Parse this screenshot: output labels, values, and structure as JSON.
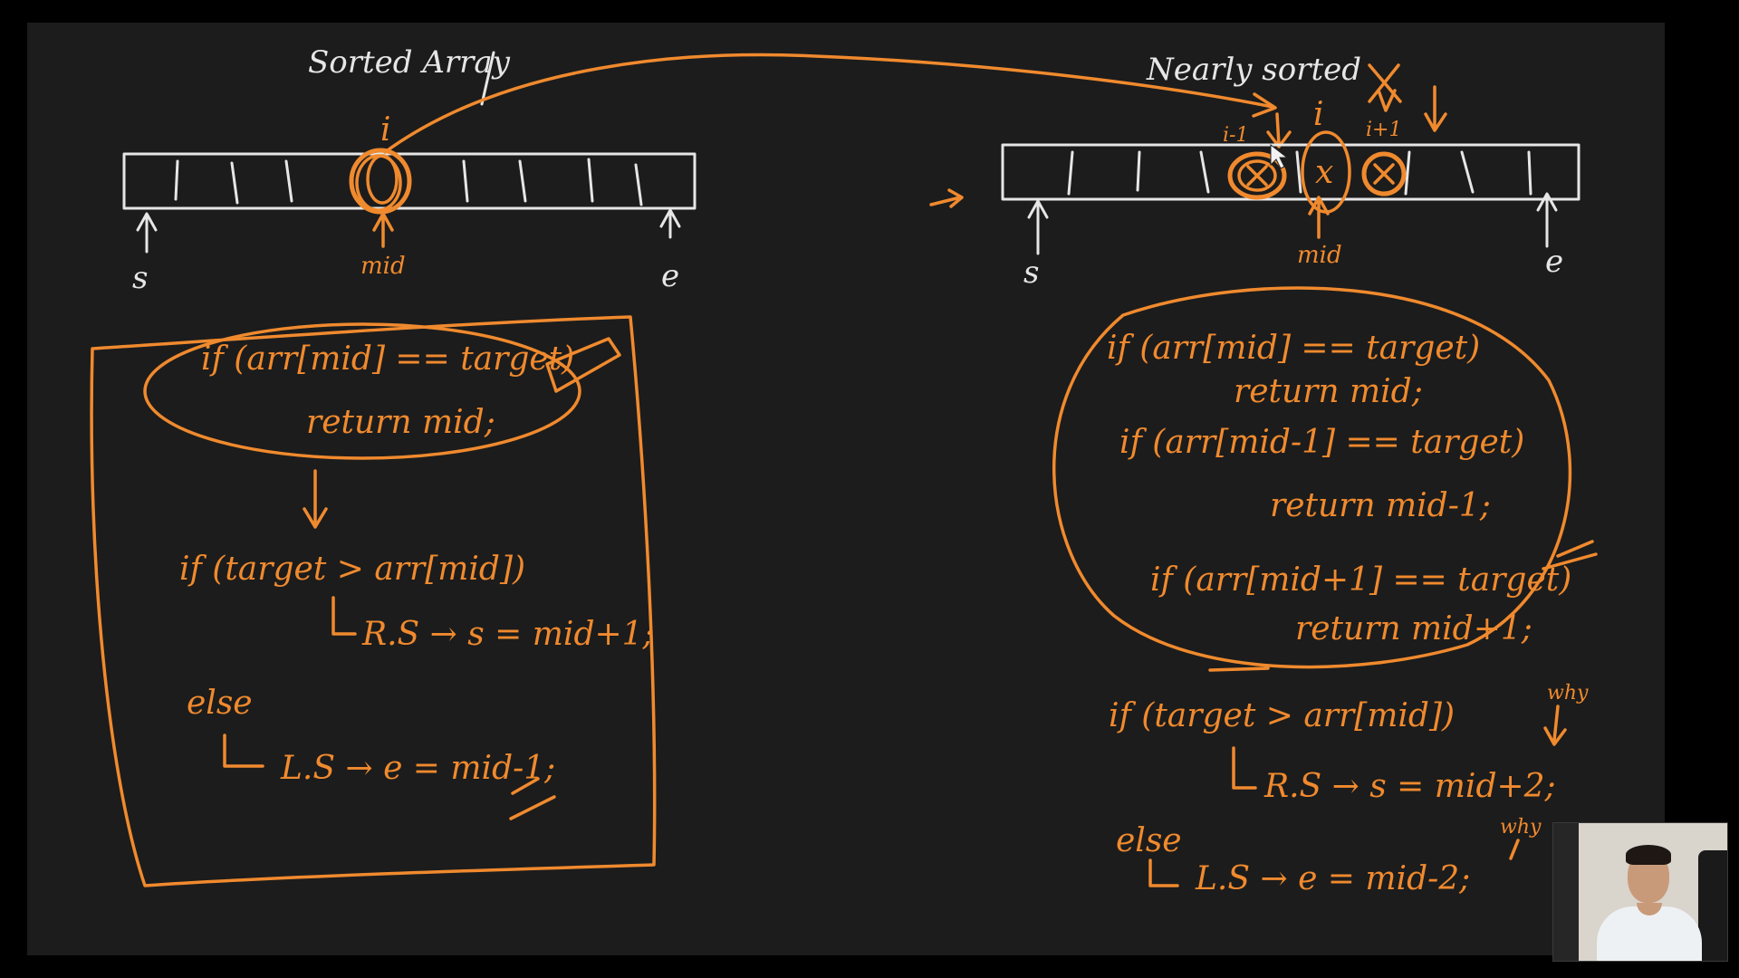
{
  "left_panel": {
    "title": "Sorted Array",
    "index_label": "i",
    "pointer_start": "s",
    "pointer_mid": "mid",
    "pointer_end": "e",
    "code": {
      "line1": "if (arr[mid] == target)",
      "line2": "return mid;",
      "line3": "if (target > arr[mid])",
      "line4": "R.S → s = mid+1;",
      "line5": "else",
      "line6": "L.S → e = mid-1;"
    }
  },
  "right_panel": {
    "title": "Nearly sorted",
    "index_prev": "i-1",
    "index_cur": "i",
    "index_next": "i+1",
    "cell_mark": "x",
    "pointer_start": "s",
    "pointer_mid": "mid",
    "pointer_end": "e",
    "code": {
      "line1": "if (arr[mid] == target)",
      "line2": "return mid;",
      "line3": "if (arr[mid-1] == target)",
      "line4": "return mid-1;",
      "line5": "if (arr[mid+1] == target)",
      "line6": "return mid+1;",
      "line7": "if (target > arr[mid])",
      "line8": "R.S → s = mid+2;",
      "line9": "else",
      "line10": "L.S → e = mid-2;",
      "why1": "why",
      "why2": "why"
    }
  },
  "colors": {
    "background": "#1c1c1c",
    "ink": "#f08a2e",
    "chalk": "#e6e6e6"
  }
}
